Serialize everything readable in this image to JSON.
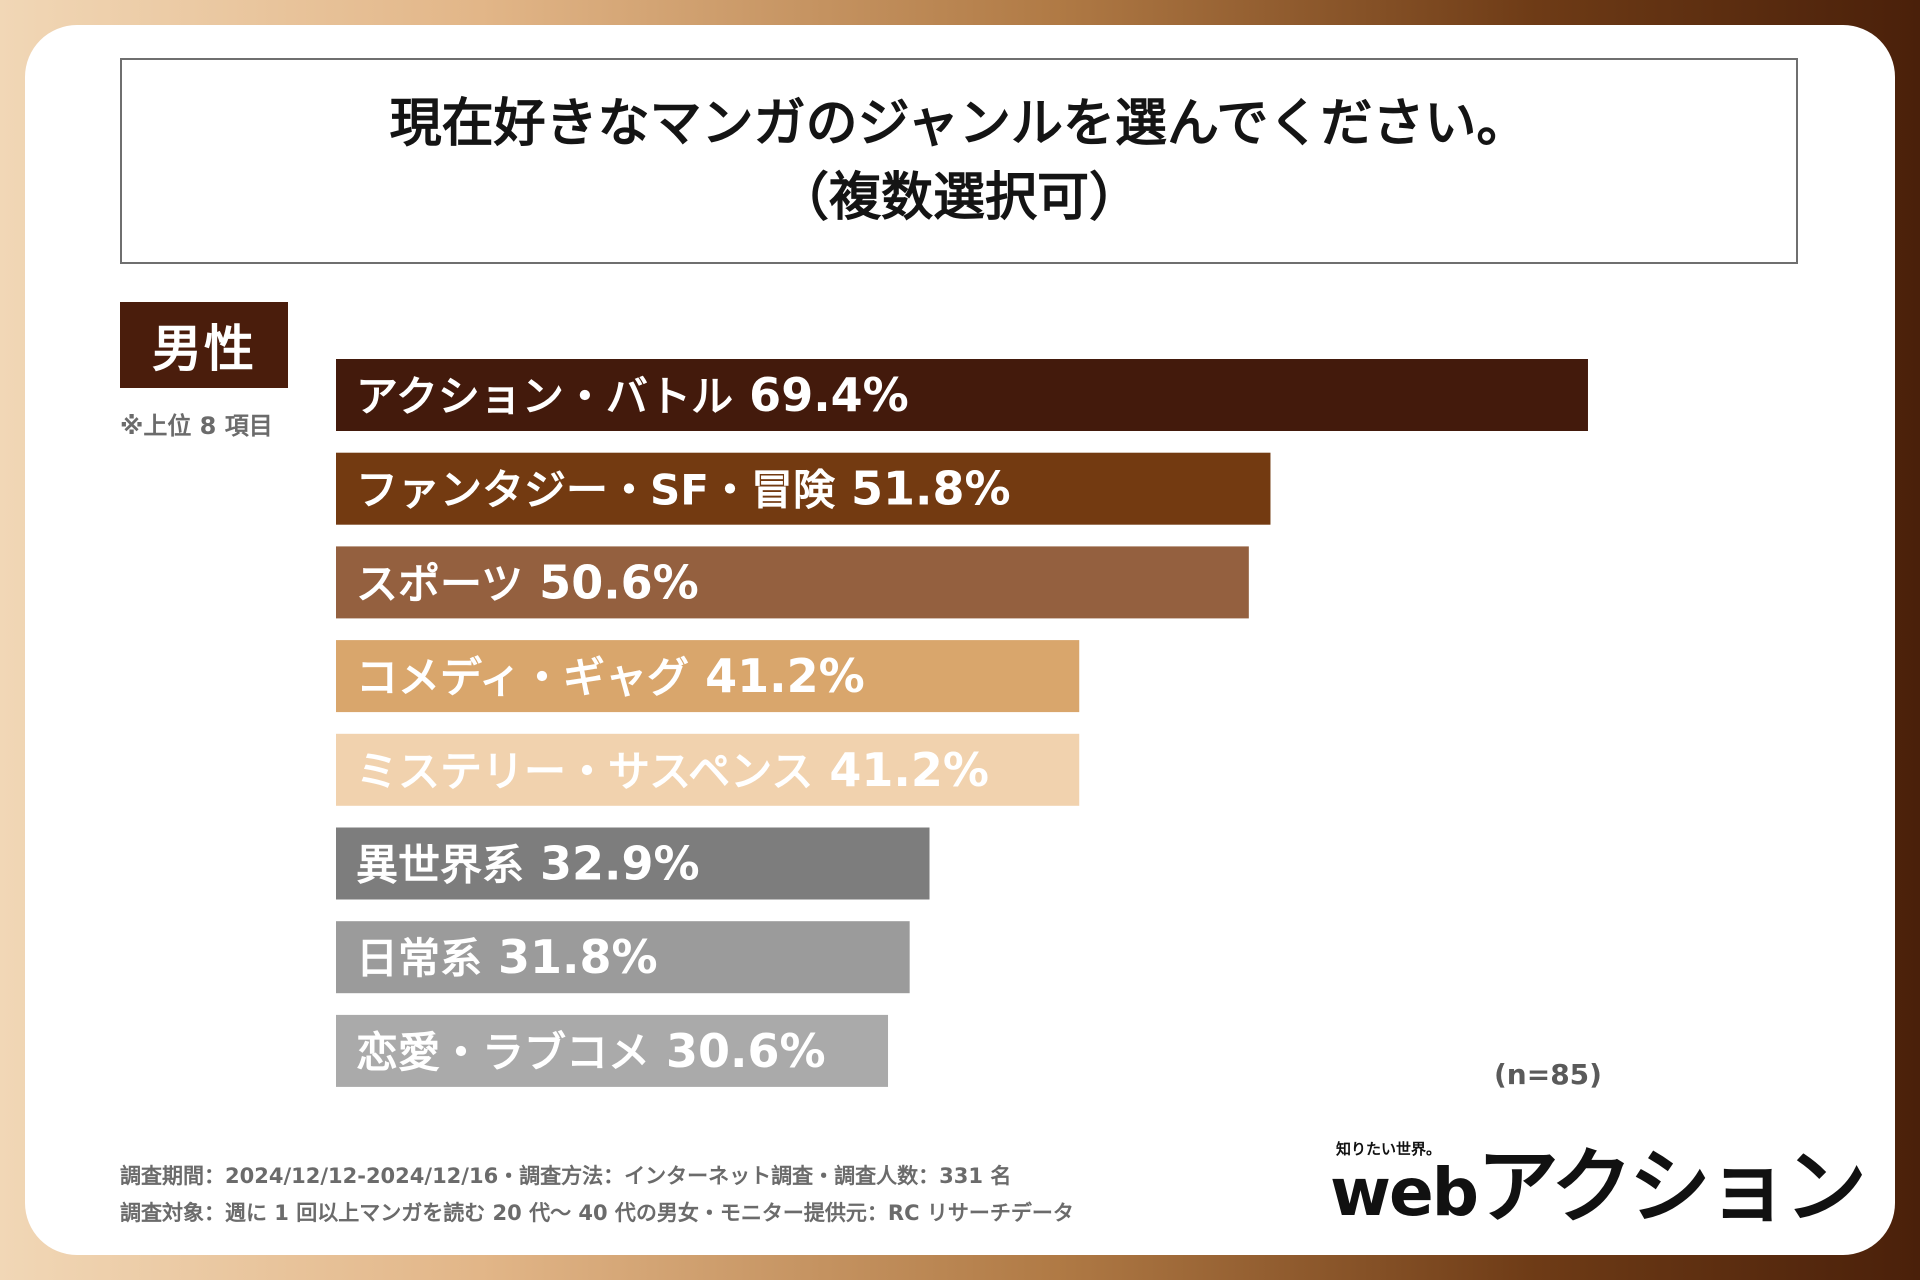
{
  "header": {
    "title_line1": "現在好きなマンガのジャンルを選んでください。",
    "title_line2": "（複数選択可）"
  },
  "group_label": "男性",
  "note": "※上位 8 項目",
  "sample": "(n=85)",
  "footer": {
    "line1": "調査期間：2024/12/12-2024/12/16・調査方法：インターネット調査・調査人数：331 名",
    "line2": "調査対象：週に 1 回以上マンガを読む 20 代〜 40 代の男女・モニター提供元：RC リサーチデータ"
  },
  "logo": {
    "tagline": "知りたい世界。",
    "web": "web",
    "name": "アクション"
  },
  "chart_data": {
    "type": "bar",
    "orientation": "horizontal",
    "categories": [
      "アクション・バトル",
      "ファンタジー・SF・冒険",
      "スポーツ",
      "コメディ・ギャグ",
      "ミステリー・サスペンス",
      "異世界系",
      "日常系",
      "恋愛・ラブコメ"
    ],
    "values": [
      69.4,
      51.8,
      50.6,
      41.2,
      41.2,
      32.9,
      31.8,
      30.6
    ],
    "value_labels": [
      "69.4%",
      "51.8%",
      "50.6%",
      "41.2%",
      "41.2%",
      "32.9%",
      "31.8%",
      "30.6%"
    ],
    "unit": "%",
    "colors": [
      "#431a0c",
      "#733a11",
      "#94603f",
      "#d9a66c",
      "#f1d2ae",
      "#7d7d7d",
      "#9b9b9b",
      "#aaaaaa"
    ],
    "label_color": "#ffffff",
    "axis_visible": false,
    "grid": false
  }
}
